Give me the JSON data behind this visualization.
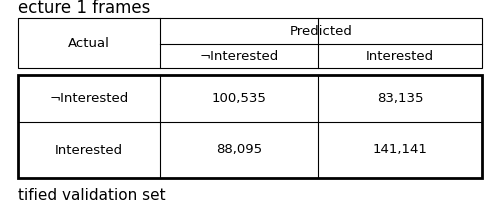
{
  "title_text": "ecture 1 frames",
  "footer_text": "tified validation set",
  "header_actual": "Actual",
  "header_predicted": "Predicted",
  "col1_header": "¬Interested",
  "col2_header": "Interested",
  "row1_label": "¬Interested",
  "row2_label": "Interested",
  "values": [
    [
      "100,535",
      "83,135"
    ],
    [
      "88,095",
      "141,141"
    ]
  ],
  "bg_color": "#ffffff",
  "text_color": "#000000",
  "line_color": "#000000",
  "font_size": 9.5,
  "title_font_size": 12
}
